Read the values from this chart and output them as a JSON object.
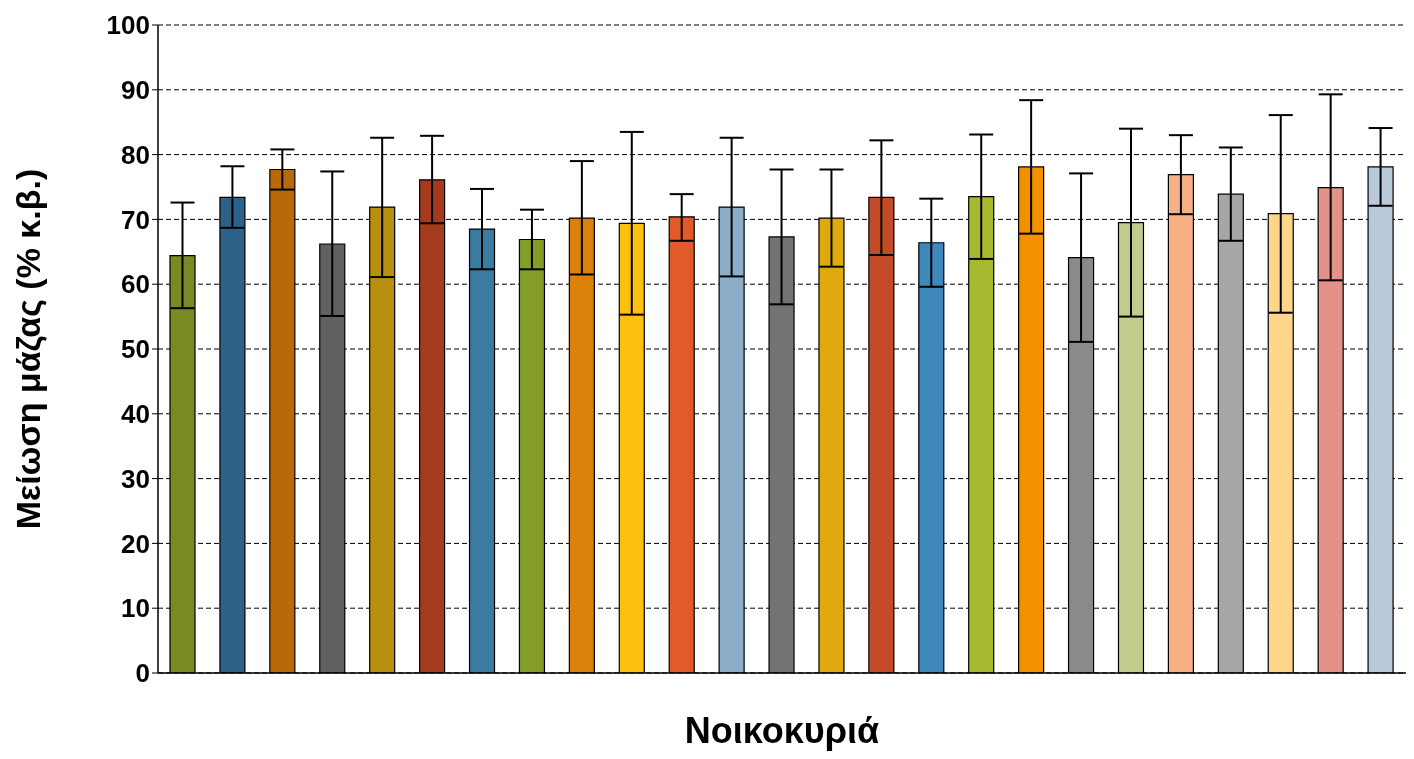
{
  "chart_data": {
    "type": "bar",
    "xlabel": "Νοικοκυριά",
    "ylabel": "Μείωση μάζας (% κ.β.)",
    "categories": [
      null,
      null,
      null,
      null,
      null,
      null,
      null,
      null,
      null,
      null,
      null,
      null,
      null,
      null,
      null,
      null,
      null,
      null,
      null,
      null,
      null,
      null,
      null,
      null,
      null
    ],
    "values": [
      64.4,
      73.4,
      77.7,
      66.2,
      71.9,
      76.1,
      68.5,
      66.9,
      70.2,
      69.4,
      70.4,
      71.9,
      67.3,
      70.2,
      73.4,
      66.4,
      73.5,
      78.1,
      64.1,
      69.5,
      76.9,
      73.9,
      70.9,
      74.9,
      78.1
    ],
    "errors": [
      [
        56.3,
        72.6
      ],
      [
        68.7,
        78.2
      ],
      [
        74.6,
        80.8
      ],
      [
        55.1,
        77.4
      ],
      [
        61.1,
        82.6
      ],
      [
        69.4,
        82.9
      ],
      [
        62.3,
        74.7
      ],
      [
        62.3,
        71.5
      ],
      [
        61.5,
        79.0
      ],
      [
        55.3,
        83.5
      ],
      [
        66.7,
        73.9
      ],
      [
        61.2,
        82.6
      ],
      [
        56.9,
        77.7
      ],
      [
        62.7,
        77.7
      ],
      [
        64.5,
        82.2
      ],
      [
        59.6,
        73.2
      ],
      [
        63.9,
        83.1
      ],
      [
        67.8,
        88.4
      ],
      [
        51.1,
        77.1
      ],
      [
        55.0,
        84.0
      ],
      [
        70.8,
        83.0
      ],
      [
        66.7,
        81.1
      ],
      [
        55.6,
        86.1
      ],
      [
        60.6,
        89.3
      ],
      [
        72.1,
        84.1
      ]
    ],
    "colors": [
      "#7a8a22",
      "#2e6187",
      "#b8690a",
      "#616161",
      "#b8900f",
      "#a33b1c",
      "#3a7ca0",
      "#849d27",
      "#dc820a",
      "#fdc010",
      "#e05a2a",
      "#8badc8",
      "#737373",
      "#dfaa0e",
      "#c44b27",
      "#3f88bc",
      "#a7b92e",
      "#f39200",
      "#8a8a8a",
      "#bfcc8e",
      "#f6b083",
      "#a6a6a6",
      "#fed68a",
      "#e49287",
      "#b8c9da"
    ],
    "ylim": [
      0,
      100
    ],
    "yticks": [
      0,
      10,
      20,
      30,
      40,
      50,
      60,
      70,
      80,
      90,
      100
    ],
    "grid": "y"
  }
}
